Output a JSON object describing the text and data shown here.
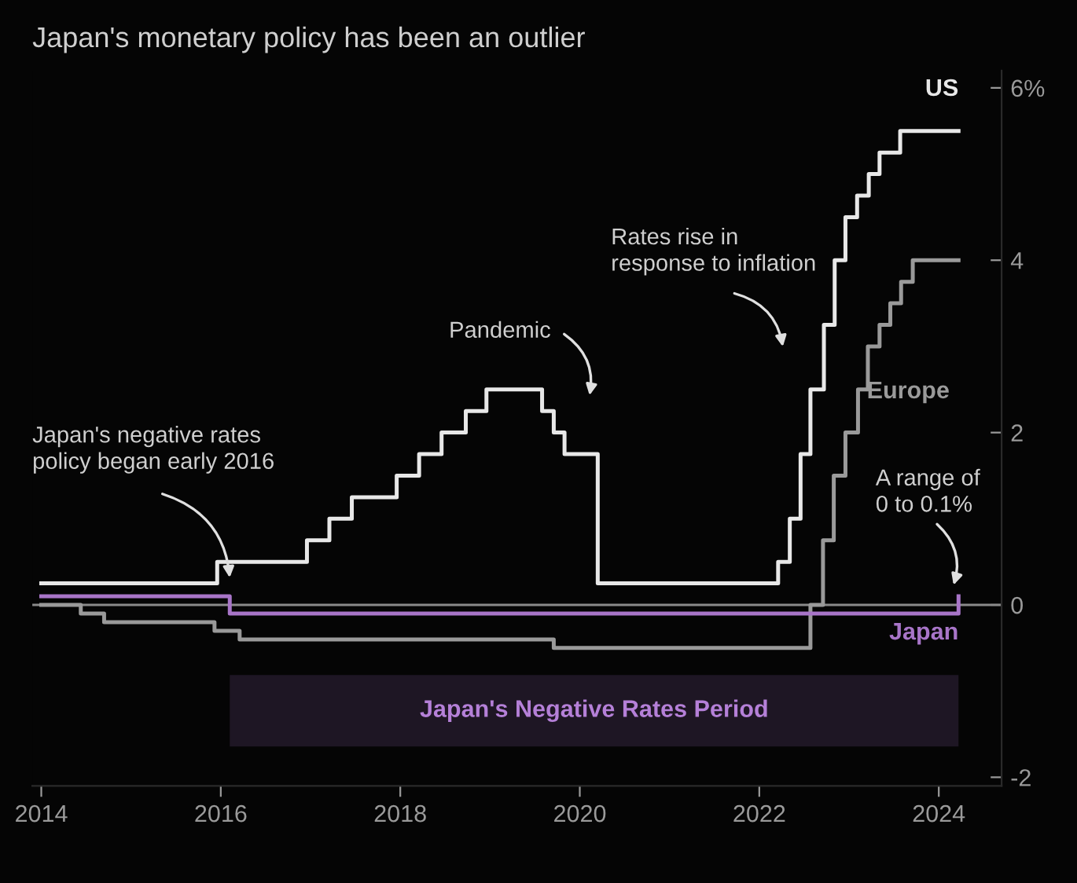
{
  "chart_data": {
    "type": "step",
    "title": "Japan's monetary policy has been an outlier",
    "xlim": [
      2013.9,
      2024.7
    ],
    "xticks": [
      2014,
      2016,
      2018,
      2020,
      2022,
      2024
    ],
    "ylim": [
      -2.1,
      6.2
    ],
    "yticks": [
      {
        "value": 6,
        "label": "6%"
      },
      4,
      2,
      0,
      -2
    ],
    "grid": false,
    "legend": false,
    "series": [
      {
        "name": "US",
        "color": "#e8e8e8",
        "x": [
          2014.0,
          2015.96,
          2016.96,
          2017.21,
          2017.46,
          2017.96,
          2018.21,
          2018.46,
          2018.73,
          2018.96,
          2019.58,
          2019.71,
          2019.83,
          2020.2,
          2022.21,
          2022.34,
          2022.46,
          2022.57,
          2022.72,
          2022.84,
          2022.96,
          2023.09,
          2023.22,
          2023.34,
          2023.57,
          2024.22
        ],
        "values": [
          0.25,
          0.5,
          0.75,
          1.0,
          1.25,
          1.5,
          1.75,
          2.0,
          2.25,
          2.5,
          2.25,
          2.0,
          1.75,
          0.25,
          0.5,
          1.0,
          1.75,
          2.5,
          3.25,
          4.0,
          4.5,
          4.75,
          5.0,
          5.25,
          5.5,
          5.5
        ]
      },
      {
        "name": "Europe",
        "color": "#9a9a9a",
        "x": [
          2014.0,
          2014.44,
          2014.7,
          2015.93,
          2016.21,
          2019.71,
          2022.57,
          2022.71,
          2022.83,
          2022.96,
          2023.1,
          2023.21,
          2023.34,
          2023.46,
          2023.58,
          2023.71,
          2024.22
        ],
        "values": [
          0,
          -0.1,
          -0.2,
          -0.3,
          -0.4,
          -0.5,
          0,
          0.75,
          1.5,
          2.0,
          2.5,
          3.0,
          3.25,
          3.5,
          3.75,
          4.0,
          4.0
        ]
      },
      {
        "name": "Japan",
        "color": "#a875c8",
        "x": [
          2014.0,
          2016.1,
          2024.22
        ],
        "values": [
          0.1,
          -0.1,
          0.1
        ]
      }
    ],
    "ref_lines": [
      {
        "axis": "y",
        "value": 0,
        "color": "#8a8a8a"
      }
    ],
    "bands": [
      {
        "axis": "x",
        "from": 2016.1,
        "to": 2024.22,
        "label": "Japan's Negative Rates Period",
        "color": "#1e1624"
      }
    ],
    "annotations": [
      "Japan's negative rates\npolicy began early 2016",
      "Pandemic",
      "Rates rise in\nresponse to inflation",
      "A range of\n0 to 0.1%"
    ]
  }
}
